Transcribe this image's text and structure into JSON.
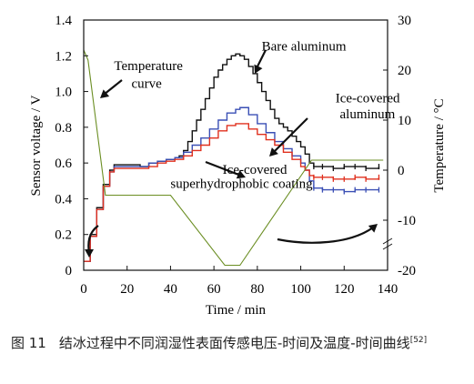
{
  "chart_data": {
    "type": "line",
    "xlabel": "Time / min",
    "ylabel": "Sensor voltage / V",
    "y2label": "Temperature / °C",
    "xlim": [
      0,
      140
    ],
    "ylim": [
      0,
      1.4
    ],
    "y2lim": [
      -20,
      30
    ],
    "xticks": [
      0,
      20,
      40,
      60,
      80,
      100,
      120,
      140
    ],
    "yticks": [
      0,
      0.2,
      0.4,
      0.6,
      0.8,
      1.0,
      1.2,
      1.4
    ],
    "y2ticks": [
      -20,
      -10,
      0,
      10,
      20,
      30
    ],
    "xtick_labels": [
      "0",
      "20",
      "40",
      "60",
      "80",
      "100",
      "120",
      "140"
    ],
    "ytick_labels": [
      "0",
      "0.2",
      "0.4",
      "0.6",
      "0.8",
      "1.0",
      "1.2",
      "1.4"
    ],
    "y2tick_labels": [
      "-20",
      "-10",
      "0",
      "10",
      "20",
      "30"
    ],
    "series": [
      {
        "name": "Bare aluminum",
        "color": "#111111",
        "axis": "left",
        "x": [
          0,
          3,
          6,
          9,
          12,
          14,
          18,
          22,
          26,
          30,
          34,
          38,
          42,
          44,
          46,
          48,
          50,
          52,
          54,
          56,
          58,
          60,
          62,
          64,
          66,
          68,
          70,
          72,
          74,
          76,
          78,
          80,
          82,
          84,
          86,
          88,
          90,
          92,
          94,
          96,
          98,
          100,
          102,
          104,
          106,
          110,
          115,
          120,
          125,
          130,
          136
        ],
        "y": [
          0.05,
          0.2,
          0.35,
          0.48,
          0.56,
          0.59,
          0.59,
          0.59,
          0.58,
          0.6,
          0.61,
          0.62,
          0.63,
          0.64,
          0.67,
          0.72,
          0.78,
          0.84,
          0.9,
          0.96,
          1.02,
          1.08,
          1.12,
          1.15,
          1.18,
          1.2,
          1.21,
          1.2,
          1.18,
          1.14,
          1.1,
          1.05,
          1.0,
          0.95,
          0.9,
          0.85,
          0.82,
          0.8,
          0.78,
          0.75,
          0.72,
          0.69,
          0.65,
          0.6,
          0.58,
          0.58,
          0.57,
          0.58,
          0.58,
          0.57,
          0.58
        ]
      },
      {
        "name": "Ice-covered aluminum",
        "color": "#3a4fb5",
        "axis": "left",
        "x": [
          0,
          3,
          6,
          9,
          12,
          14,
          18,
          22,
          26,
          30,
          34,
          38,
          42,
          46,
          50,
          54,
          58,
          62,
          66,
          70,
          72,
          76,
          80,
          84,
          88,
          92,
          96,
          100,
          102,
          104,
          106,
          110,
          115,
          120,
          125,
          130,
          136
        ],
        "y": [
          0.05,
          0.19,
          0.34,
          0.47,
          0.55,
          0.58,
          0.58,
          0.58,
          0.58,
          0.6,
          0.61,
          0.62,
          0.63,
          0.66,
          0.7,
          0.74,
          0.79,
          0.84,
          0.88,
          0.9,
          0.91,
          0.87,
          0.82,
          0.77,
          0.72,
          0.68,
          0.64,
          0.6,
          0.56,
          0.5,
          0.46,
          0.45,
          0.45,
          0.44,
          0.45,
          0.45,
          0.45
        ]
      },
      {
        "name": "Ice-covered superhydrophobic coating",
        "color": "#e0301e",
        "axis": "left",
        "x": [
          0,
          3,
          6,
          9,
          12,
          14,
          18,
          22,
          26,
          30,
          34,
          38,
          42,
          46,
          50,
          54,
          58,
          62,
          66,
          70,
          72,
          76,
          80,
          84,
          88,
          92,
          96,
          100,
          102,
          104,
          106,
          110,
          115,
          120,
          125,
          130,
          136
        ],
        "y": [
          0.05,
          0.19,
          0.34,
          0.47,
          0.55,
          0.57,
          0.57,
          0.57,
          0.57,
          0.58,
          0.6,
          0.61,
          0.62,
          0.64,
          0.67,
          0.7,
          0.74,
          0.78,
          0.81,
          0.82,
          0.82,
          0.79,
          0.76,
          0.73,
          0.7,
          0.66,
          0.62,
          0.58,
          0.56,
          0.53,
          0.52,
          0.52,
          0.51,
          0.51,
          0.52,
          0.51,
          0.52
        ]
      },
      {
        "name": "Temperature curve",
        "color": "#6b8e23",
        "axis": "right",
        "x": [
          0,
          2,
          10,
          15,
          40,
          65,
          72,
          105,
          138
        ],
        "y": [
          24,
          22,
          -5,
          -5,
          -5,
          -19,
          -19,
          2,
          2
        ]
      }
    ],
    "annotations": [
      {
        "text": "Temperature",
        "x": 14,
        "y": 1.12
      },
      {
        "text": "curve",
        "x": 22,
        "y": 1.02
      },
      {
        "text": "Bare aluminum",
        "x": 82,
        "y": 1.23
      },
      {
        "text": "Ice-covered",
        "x": 116,
        "y": 0.94
      },
      {
        "text": "aluminum",
        "x": 118,
        "y": 0.85
      },
      {
        "text": "Ice-covered",
        "x": 64,
        "y": 0.54
      },
      {
        "text": "superhydrophobic coating",
        "x": 40,
        "y": 0.46
      }
    ],
    "grid": false,
    "legend": "none"
  },
  "caption": {
    "figure_no": "图 11",
    "text": "结冰过程中不同润湿性表面传感电压-时间及温度-时间曲线",
    "ref": "[52]"
  }
}
